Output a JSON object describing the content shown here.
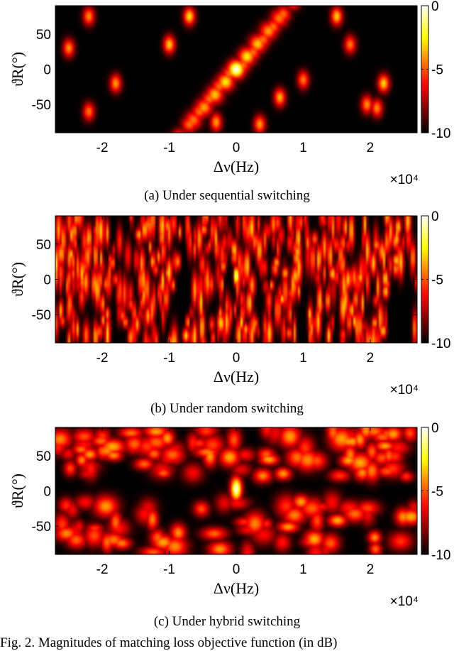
{
  "chart_data": [
    {
      "type": "heatmap",
      "caption": "(a) Under sequential switching",
      "xlabel": "Δν(Hz)",
      "ylabel": "ϑR(°)",
      "x_multiplier": "×10⁴",
      "xlim": [
        -2.7,
        2.7
      ],
      "ylim": [
        -90,
        90
      ],
      "xticks": [
        -2,
        -1,
        0,
        1,
        2
      ],
      "yticks": [
        -50,
        0,
        50
      ],
      "colorbar": {
        "range": [
          -10,
          0
        ],
        "ticks": [
          0,
          -5,
          -10
        ]
      },
      "pattern": "sequential",
      "seed": 11
    },
    {
      "type": "heatmap",
      "caption": "(b) Under random switching",
      "xlabel": "Δν(Hz)",
      "ylabel": "ϑR(°)",
      "x_multiplier": "×10⁴",
      "xlim": [
        -2.7,
        2.7
      ],
      "ylim": [
        -90,
        90
      ],
      "xticks": [
        -2,
        -1,
        0,
        1,
        2
      ],
      "yticks": [
        -50,
        0,
        50
      ],
      "colorbar": {
        "range": [
          -10,
          0
        ],
        "ticks": [
          0,
          -5,
          -10
        ]
      },
      "pattern": "random",
      "seed": 23
    },
    {
      "type": "heatmap",
      "caption": "(c) Under hybrid switching",
      "xlabel": "Δν(Hz)",
      "ylabel": "ϑR(°)",
      "x_multiplier": "×10⁴",
      "xlim": [
        -2.7,
        2.7
      ],
      "ylim": [
        -90,
        90
      ],
      "xticks": [
        -2,
        -1,
        0,
        1,
        2
      ],
      "yticks": [
        -50,
        0,
        50
      ],
      "colorbar": {
        "range": [
          -10,
          0
        ],
        "ticks": [
          0,
          -5,
          -10
        ]
      },
      "pattern": "hybrid",
      "seed": 37
    }
  ],
  "figure_caption": "Fig. 2.  Magnitudes of matching loss objective function (in dB)"
}
